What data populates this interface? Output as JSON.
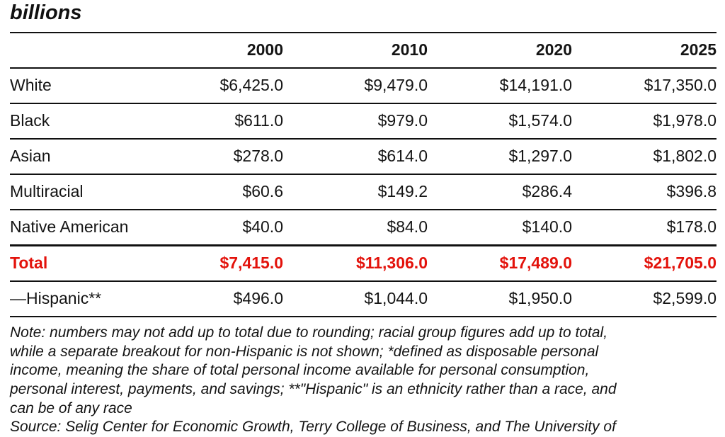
{
  "title": "billions",
  "colors": {
    "accent_red": "#e3120b",
    "rule": "#111111",
    "text": "#141414",
    "background": "#ffffff"
  },
  "table": {
    "col_headers": [
      "",
      "2000",
      "2010",
      "2020",
      "2025"
    ],
    "rows": [
      {
        "label": "White",
        "values": [
          "$6,425.0",
          "$9,479.0",
          "$14,191.0",
          "$17,350.0"
        ],
        "emphasis": false
      },
      {
        "label": "Black",
        "values": [
          "$611.0",
          "$979.0",
          "$1,574.0",
          "$1,978.0"
        ],
        "emphasis": false
      },
      {
        "label": "Asian",
        "values": [
          "$278.0",
          "$614.0",
          "$1,297.0",
          "$1,802.0"
        ],
        "emphasis": false
      },
      {
        "label": "Multiracial",
        "values": [
          "$60.6",
          "$149.2",
          "$286.4",
          "$396.8"
        ],
        "emphasis": false
      },
      {
        "label": "Native American",
        "values": [
          "$40.0",
          "$84.0",
          "$140.0",
          "$178.0"
        ],
        "emphasis": false
      },
      {
        "label": "Total",
        "values": [
          "$7,415.0",
          "$11,306.0",
          "$17,489.0",
          "$21,705.0"
        ],
        "emphasis": true
      },
      {
        "label": "—Hispanic**",
        "values": [
          "$496.0",
          "$1,044.0",
          "$1,950.0",
          "$2,599.0"
        ],
        "emphasis": false
      }
    ]
  },
  "notes": {
    "lines": [
      "Note: numbers may not add up to total due to rounding; racial group figures add up to total,",
      "while a separate breakout for non-Hispanic is not shown; *defined as disposable personal",
      "income, meaning the share of total personal income available for personal consumption,",
      "personal interest, payments, and savings; **\"Hispanic\" is an ethnicity rather than a race, and",
      "can be of any race",
      "Source: Selig Center for Economic Growth, Terry College of Business, and The University of"
    ]
  },
  "chart_data": {
    "type": "table",
    "title": "billions",
    "categories": [
      "2000",
      "2010",
      "2020",
      "2025"
    ],
    "series": [
      {
        "name": "White",
        "values": [
          6425.0,
          9479.0,
          14191.0,
          17350.0
        ]
      },
      {
        "name": "Black",
        "values": [
          611.0,
          979.0,
          1574.0,
          1978.0
        ]
      },
      {
        "name": "Asian",
        "values": [
          278.0,
          614.0,
          1297.0,
          1802.0
        ]
      },
      {
        "name": "Multiracial",
        "values": [
          60.6,
          149.2,
          286.4,
          396.8
        ]
      },
      {
        "name": "Native American",
        "values": [
          40.0,
          84.0,
          140.0,
          178.0
        ]
      },
      {
        "name": "Total",
        "values": [
          7415.0,
          11306.0,
          17489.0,
          21705.0
        ]
      },
      {
        "name": "—Hispanic**",
        "values": [
          496.0,
          1044.0,
          1950.0,
          2599.0
        ]
      }
    ],
    "units": "billions of dollars",
    "layout": {
      "value_alignment": "right",
      "emphasized_row": "Total",
      "emphasis_color": "#e3120b"
    }
  }
}
